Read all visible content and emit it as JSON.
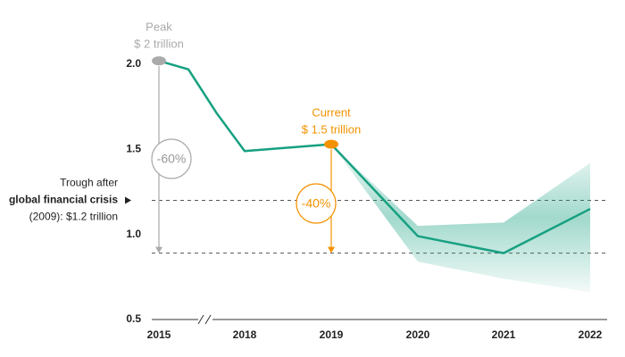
{
  "chart_data": {
    "type": "line",
    "categories": [
      "2015",
      null,
      null,
      "2018",
      "2019",
      "2020",
      "2021",
      "2022"
    ],
    "series": [
      {
        "color": "#16a081",
        "values": [
          2.02,
          1.97,
          1.71,
          1.49,
          1.53,
          0.99,
          0.89,
          1.15
        ]
      }
    ],
    "band": {
      "color": "#16a081",
      "lower": [
        null,
        null,
        null,
        null,
        1.53,
        0.84,
        0.74,
        0.66
      ],
      "upper": [
        null,
        null,
        null,
        null,
        1.53,
        1.05,
        1.07,
        1.42
      ]
    },
    "ylim": [
      0.5,
      2.0
    ],
    "yticks": [
      0.5,
      {
        "value": 1.0,
        "label": "1.0"
      },
      {
        "value": 1.5,
        "label": "1.5"
      },
      {
        "value": 2.0,
        "label": "2.0"
      }
    ],
    "reference_lines": [
      1.2,
      0.89
    ],
    "peak": {
      "color": "#aaaaaa",
      "label": "Peak",
      "value_label": "$ 2 trillion",
      "change": "-60%"
    },
    "current": {
      "color": "#f39200",
      "label": "Current",
      "value_label": "$ 1.5 trillion",
      "change": "-40%"
    },
    "trough_note": [
      "Trough after",
      "global financial crisis",
      "(2009): $1.2 trillion"
    ]
  }
}
